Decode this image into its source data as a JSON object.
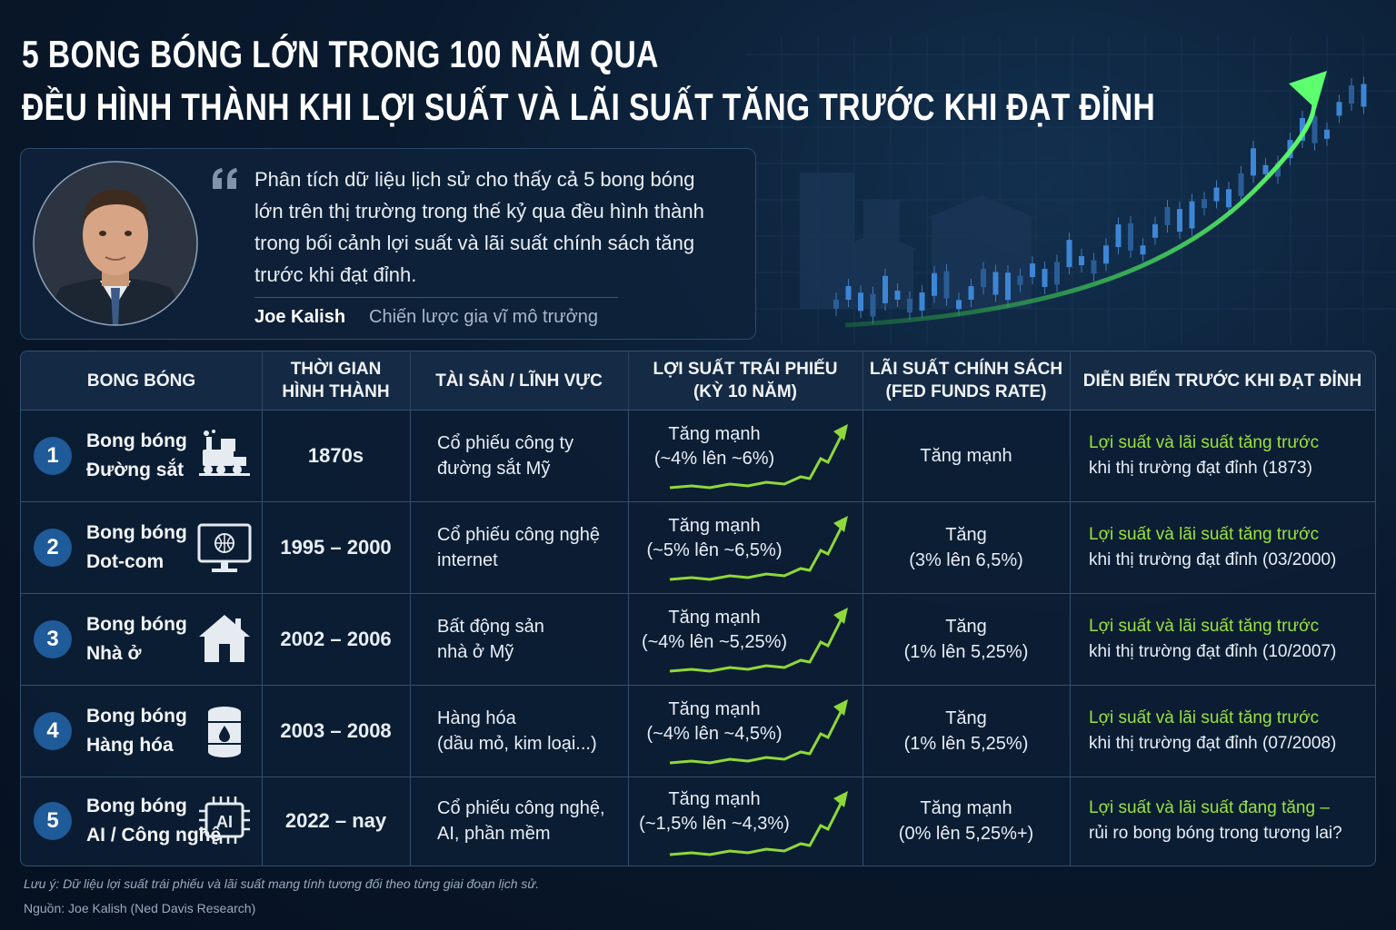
{
  "header": {
    "title_lines": [
      "5 BONG BÓNG LỚN TRONG 100 NĂM QUA",
      "ĐỀU HÌNH THÀNH KHI LỢI SUẤT VÀ LÃI SUẤT TĂNG TRƯỚC KHI ĐẠT ĐỈNH"
    ]
  },
  "quote": {
    "text_lines": [
      "Phân tích dữ liệu lịch sử cho thấy cả 5 bong bóng",
      "lớn trên thị trường trong thế kỷ qua đều hình thành",
      "trong bối cảnh lợi suất và lãi suất chính sách tăng",
      "trước khi đạt đỉnh."
    ],
    "author": "Joe Kalish",
    "role": "Chiến lược gia vĩ mô trưởng"
  },
  "table": {
    "headers": [
      [
        "BONG BÓNG"
      ],
      [
        "THỜI GIAN",
        "HÌNH THÀNH"
      ],
      [
        "TÀI SẢN / LĨNH VỰC"
      ],
      [
        "LỢI SUẤT TRÁI PHIẾU",
        "(KỲ 10 NĂM)"
      ],
      [
        "LÃI SUẤT CHÍNH SÁCH",
        "(FED FUNDS RATE)"
      ],
      [
        "DIỄN BIẾN TRƯỚC KHI ĐẠT ĐỈNH"
      ]
    ],
    "rows": [
      {
        "number": "1",
        "name": [
          "Bong bóng",
          "Đường sắt"
        ],
        "period": "1870s",
        "asset": [
          "Cổ phiếu công ty",
          "đường sắt Mỹ"
        ],
        "bond": [
          "Tăng mạnh",
          "(~4% lên ~6%)"
        ],
        "policy": [
          "Tăng mạnh"
        ],
        "trend": [
          "Lợi suất và lãi suất tăng trước",
          "khi thị trường đạt đỉnh (1873)"
        ]
      },
      {
        "number": "2",
        "name": [
          "Bong bóng",
          "Dot-com"
        ],
        "period": "1995 – 2000",
        "asset": [
          "Cổ phiếu công nghệ",
          "internet"
        ],
        "bond": [
          "Tăng mạnh",
          "(~5% lên ~6,5%)"
        ],
        "policy": [
          "Tăng",
          "(3% lên 6,5%)"
        ],
        "trend": [
          "Lợi suất và lãi suất tăng trước",
          "khi thị trường đạt đỉnh (03/2000)"
        ]
      },
      {
        "number": "3",
        "name": [
          "Bong bóng",
          "Nhà ở"
        ],
        "period": "2002 – 2006",
        "asset": [
          "Bất động sản",
          "nhà ở Mỹ"
        ],
        "bond": [
          "Tăng mạnh",
          "(~4% lên ~5,25%)"
        ],
        "policy": [
          "Tăng",
          "(1% lên 5,25%)"
        ],
        "trend": [
          "Lợi suất và lãi suất tăng trước",
          "khi thị trường đạt đỉnh (10/2007)"
        ]
      },
      {
        "number": "4",
        "name": [
          "Bong bóng",
          "Hàng hóa"
        ],
        "period": "2003 – 2008",
        "asset": [
          "Hàng hóa",
          "(dầu mỏ, kim loại...)"
        ],
        "bond": [
          "Tăng mạnh",
          "(~4% lên ~4,5%)"
        ],
        "policy": [
          "Tăng",
          "(1% lên 5,25%)"
        ],
        "trend": [
          "Lợi suất và lãi suất tăng trước",
          "khi thị trường đạt đỉnh (07/2008)"
        ]
      },
      {
        "number": "5",
        "name": [
          "Bong bóng",
          "AI / Công nghệ"
        ],
        "icon_label": "AI",
        "period": "2022 – nay",
        "asset": [
          "Cổ phiếu công nghệ,",
          "AI, phần mềm"
        ],
        "bond": [
          "Tăng mạnh",
          "(~1,5% lên ~4,3%)"
        ],
        "policy": [
          "Tăng mạnh",
          "(0% lên 5,25%+)"
        ],
        "trend": [
          "Lợi suất và lãi suất đang tăng –",
          "rủi ro bong bóng trong tương lai?"
        ]
      }
    ]
  },
  "footer": {
    "note": "Lưu ý: Dữ liệu lợi suất trái phiếu và lãi suất mang tính tương đối theo từng giai đoạn lịch sử.",
    "source": "Nguồn: Joe Kalish (Ned Davis Research)"
  }
}
